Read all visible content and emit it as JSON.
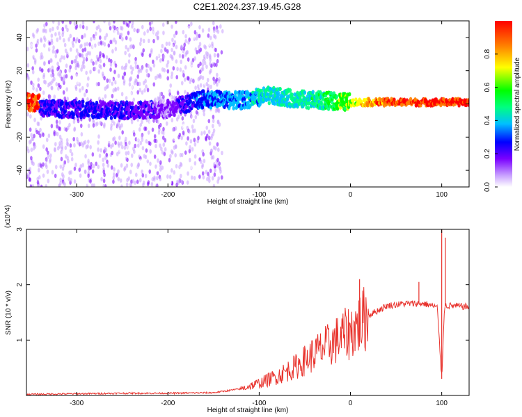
{
  "figure": {
    "title": "C2E1.2024.237.19.45.G28"
  },
  "chart_data": [
    {
      "type": "heatmap",
      "title": "C2E1.2024.237.19.45.G28",
      "xlabel": "Height of straight line (km)",
      "ylabel": "Frequency (Hz)",
      "xlim": [
        -355,
        130
      ],
      "ylim": [
        -50,
        50
      ],
      "xticks": [
        -300,
        -200,
        -100,
        0,
        100
      ],
      "yticks": [
        -40,
        -20,
        0,
        20,
        40
      ],
      "colorbar": {
        "label": "Normalized spectral amplitude",
        "range": [
          0.0,
          1.0
        ],
        "ticks": [
          0.0,
          0.2,
          0.4,
          0.6,
          0.8
        ],
        "colors": [
          "#ffffff",
          "#c8a0ff",
          "#7a00ff",
          "#0000ff",
          "#00bfff",
          "#00ff80",
          "#00ff00",
          "#ffff00",
          "#ff8000",
          "#ff0000"
        ]
      },
      "main_band": [
        {
          "x": -340,
          "freq": -3,
          "amplitude": 0.3
        },
        {
          "x": -300,
          "freq": -3,
          "amplitude": 0.32
        },
        {
          "x": -250,
          "freq": -4,
          "amplitude": 0.3
        },
        {
          "x": -200,
          "freq": -3,
          "amplitude": 0.22
        },
        {
          "x": -160,
          "freq": 3,
          "amplitude": 0.4
        },
        {
          "x": -120,
          "freq": 2,
          "amplitude": 0.42
        },
        {
          "x": -90,
          "freq": 5,
          "amplitude": 0.48
        },
        {
          "x": -60,
          "freq": 3,
          "amplitude": 0.5
        },
        {
          "x": -30,
          "freq": 2,
          "amplitude": 0.55
        },
        {
          "x": 0,
          "freq": 1,
          "amplitude": 0.7
        },
        {
          "x": 30,
          "freq": 1,
          "amplitude": 0.85
        },
        {
          "x": 60,
          "freq": 1,
          "amplitude": 0.9
        },
        {
          "x": 100,
          "freq": 1,
          "amplitude": 0.92
        },
        {
          "x": 130,
          "freq": 1,
          "amplitude": 0.92
        }
      ]
    },
    {
      "type": "line",
      "xlabel": "Height of straight line (km)",
      "ylabel": "SNR (10 * v/v)",
      "y_multiplier": "(x10^4)",
      "xlim": [
        -355,
        130
      ],
      "ylim": [
        0,
        3
      ],
      "xticks": [
        -300,
        -200,
        -100,
        0,
        100
      ],
      "yticks": [
        1,
        2,
        3
      ],
      "series": [
        {
          "color": "#e8302a",
          "x": [
            -355,
            -300,
            -250,
            -200,
            -150,
            -120,
            -100,
            -80,
            -60,
            -40,
            -20,
            0,
            10,
            20,
            40,
            60,
            80,
            95,
            100,
            103,
            110,
            130
          ],
          "y": [
            0.02,
            0.03,
            0.04,
            0.04,
            0.05,
            0.12,
            0.22,
            0.35,
            0.52,
            0.75,
            0.95,
            1.15,
            1.3,
            1.45,
            1.62,
            1.66,
            1.66,
            1.6,
            0.3,
            1.62,
            1.62,
            1.6
          ]
        }
      ],
      "spikes": [
        {
          "x": 10,
          "y": 2.1
        },
        {
          "x": 75,
          "y": 2.05
        },
        {
          "x": 100,
          "y": 3.0
        },
        {
          "x": 104,
          "y": 2.85
        }
      ]
    }
  ]
}
